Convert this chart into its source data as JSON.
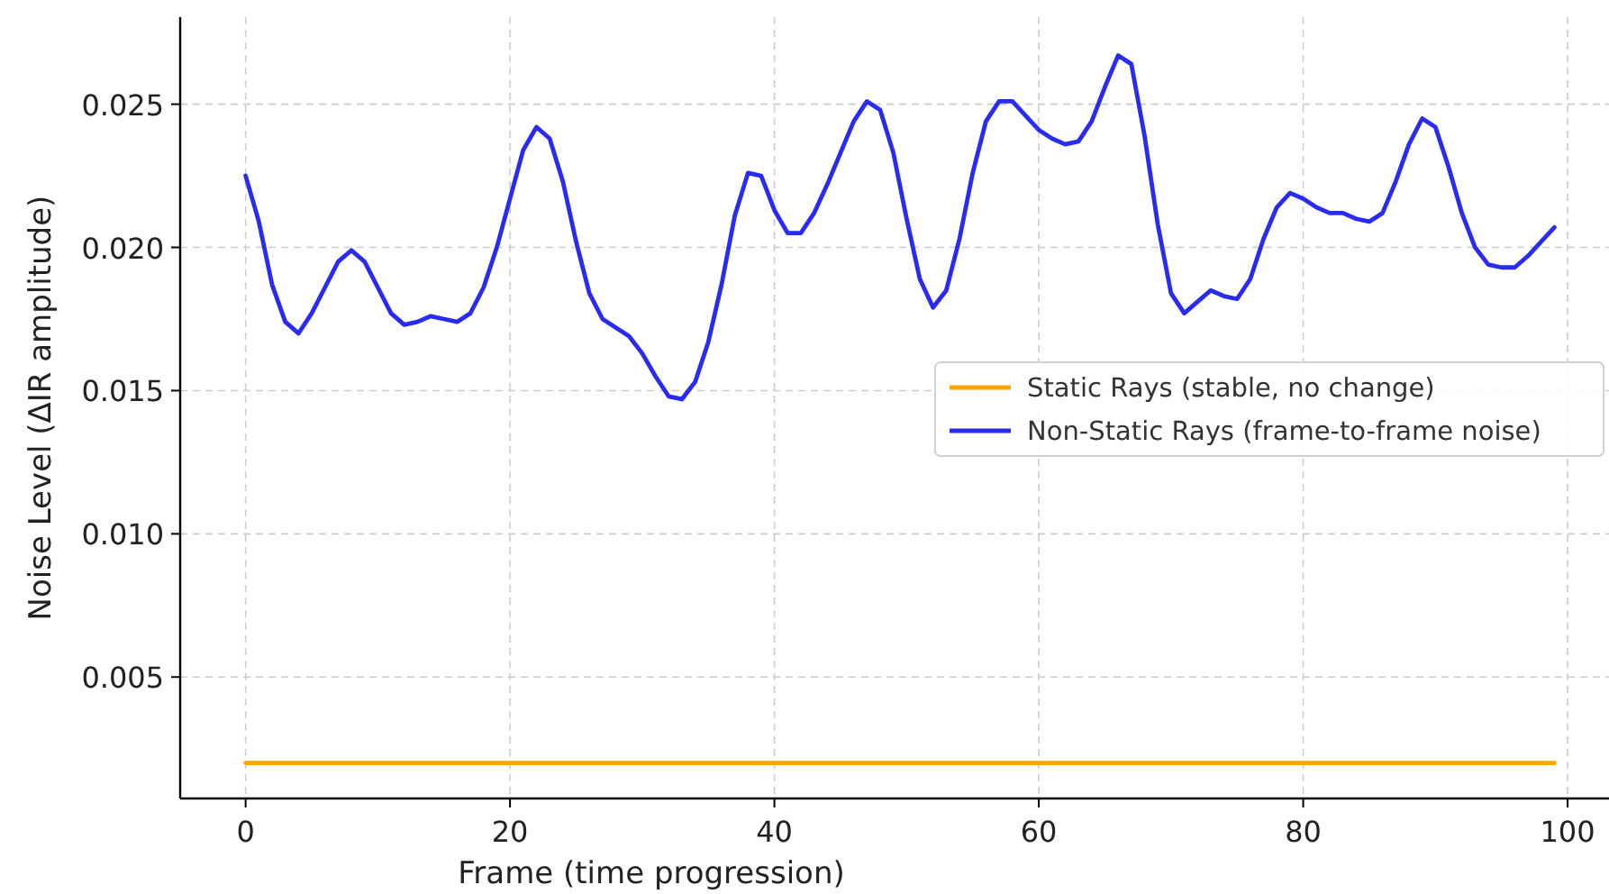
{
  "chart_data": {
    "type": "line",
    "xlabel": "Frame (time progression)",
    "ylabel": "Noise Level (ΔIR amplitude)",
    "x": [
      0,
      1,
      2,
      3,
      4,
      5,
      6,
      7,
      8,
      9,
      10,
      11,
      12,
      13,
      14,
      15,
      16,
      17,
      18,
      19,
      20,
      21,
      22,
      23,
      24,
      25,
      26,
      27,
      28,
      29,
      30,
      31,
      32,
      33,
      34,
      35,
      36,
      37,
      38,
      39,
      40,
      41,
      42,
      43,
      44,
      45,
      46,
      47,
      48,
      49,
      50,
      51,
      52,
      53,
      54,
      55,
      56,
      57,
      58,
      59,
      60,
      61,
      62,
      63,
      64,
      65,
      66,
      67,
      68,
      69,
      70,
      71,
      72,
      73,
      74,
      75,
      76,
      77,
      78,
      79,
      80,
      81,
      82,
      83,
      84,
      85,
      86,
      87,
      88,
      89,
      90,
      91,
      92,
      93,
      94,
      95,
      96,
      97,
      98,
      99
    ],
    "series": [
      {
        "name": "Static Rays (stable, no change)",
        "color": "#ffa500",
        "x": [
          0,
          99
        ],
        "values": [
          0.002,
          0.002
        ]
      },
      {
        "name": "Non-Static Rays (frame-to-frame noise)",
        "color": "#2a2af5",
        "values": [
          0.0225,
          0.0209,
          0.0187,
          0.0174,
          0.017,
          0.0177,
          0.0186,
          0.0195,
          0.0199,
          0.0195,
          0.0186,
          0.0177,
          0.0173,
          0.0174,
          0.0176,
          0.0175,
          0.0174,
          0.0177,
          0.0186,
          0.02,
          0.0217,
          0.0234,
          0.0242,
          0.0238,
          0.0223,
          0.0202,
          0.0184,
          0.0175,
          0.0172,
          0.0169,
          0.0163,
          0.0155,
          0.0148,
          0.0147,
          0.0153,
          0.0167,
          0.0187,
          0.0211,
          0.0226,
          0.0225,
          0.0213,
          0.0205,
          0.0205,
          0.0212,
          0.0222,
          0.0233,
          0.0244,
          0.0251,
          0.0248,
          0.0233,
          0.021,
          0.0189,
          0.0179,
          0.0185,
          0.0203,
          0.0226,
          0.0244,
          0.0251,
          0.0251,
          0.0246,
          0.0241,
          0.0238,
          0.0236,
          0.0237,
          0.0244,
          0.0256,
          0.0267,
          0.0264,
          0.0239,
          0.0208,
          0.0184,
          0.0177,
          0.0181,
          0.0185,
          0.0183,
          0.0182,
          0.0189,
          0.0203,
          0.0214,
          0.0219,
          0.0217,
          0.0214,
          0.0212,
          0.0212,
          0.021,
          0.0209,
          0.0212,
          0.0223,
          0.0236,
          0.0245,
          0.0242,
          0.0228,
          0.0212,
          0.02,
          0.0194,
          0.0193,
          0.0193,
          0.0197,
          0.0202,
          0.0207
        ]
      }
    ],
    "xlim": [
      -4.95,
      103.95
    ],
    "xticks": [
      0,
      20,
      40,
      60,
      80,
      100
    ],
    "ylim": [
      0.00076,
      0.02804
    ],
    "yticks": [
      0.005,
      {
        "value": 0.01,
        "label": "0.010"
      },
      0.015,
      {
        "value": 0.02,
        "label": "0.020"
      },
      0.025
    ],
    "grid": true,
    "legend": "center right",
    "line_style": "solid",
    "marker": "none"
  }
}
